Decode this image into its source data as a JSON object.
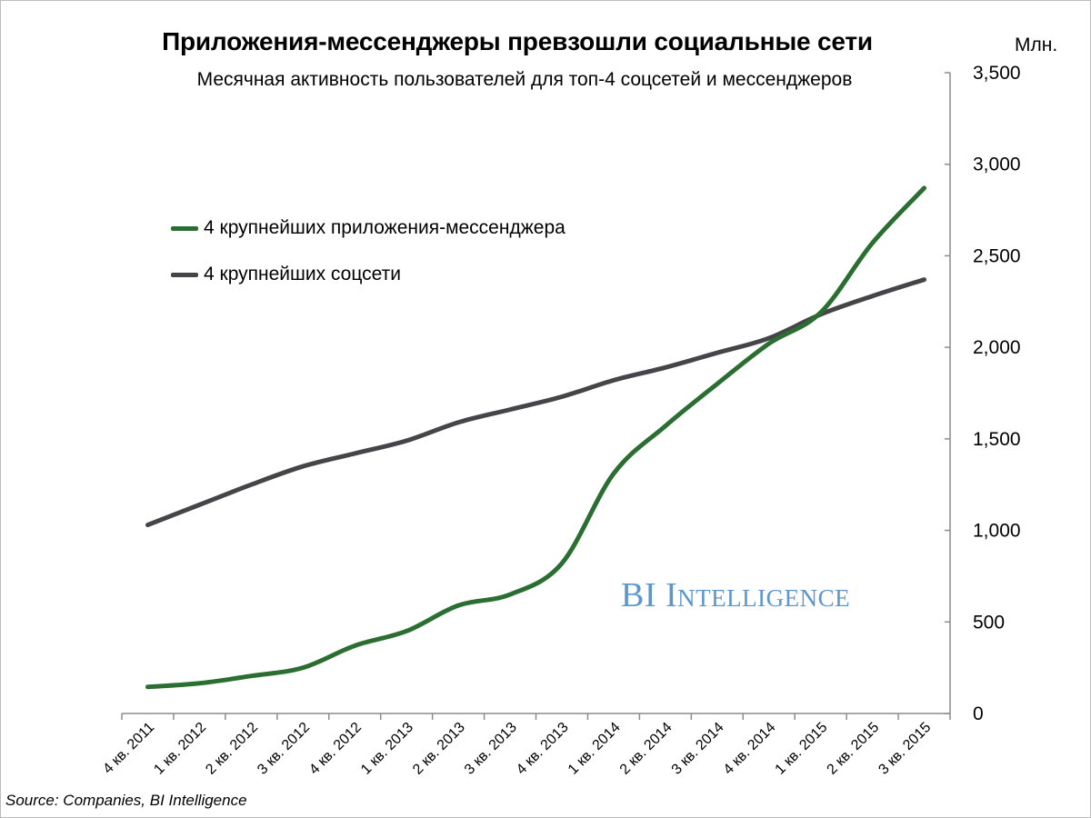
{
  "title": "Приложения-мессенджеры превзошли социальные сети",
  "subtitle": "Месячная активность пользователей для топ-4 соцсетей и мессенджеров",
  "unit_label": "Млн.",
  "source": "Source: Companies, BI Intelligence",
  "watermark": "BI Intelligence",
  "colors": {
    "messengers": "#2b6e32",
    "social": "#454549",
    "watermark": "#5b96cf",
    "axis": "#8c8c8c"
  },
  "chart_data": {
    "type": "line",
    "categories": [
      "4 кв. 2011",
      "1 кв. 2012",
      "2 кв. 2012",
      "3 кв. 2012",
      "4 кв. 2012",
      "1 кв. 2013",
      "2 кв. 2013",
      "3 кв. 2013",
      "4 кв. 2013",
      "1 кв. 2014",
      "2 кв. 2014",
      "3 кв. 2014",
      "4 кв. 2014",
      "1 кв. 2015",
      "2 кв. 2015",
      "3 кв. 2015"
    ],
    "series": [
      {
        "name": "4 крупнейших приложения-мессенджера",
        "color": "#2b6e32",
        "values": [
          145,
          165,
          205,
          250,
          370,
          450,
          590,
          650,
          820,
          1310,
          1570,
          1800,
          2020,
          2190,
          2570,
          2870
        ]
      },
      {
        "name": "4 крупнейших соцсети",
        "color": "#454549",
        "values": [
          1030,
          1140,
          1250,
          1350,
          1420,
          1490,
          1590,
          1660,
          1730,
          1820,
          1890,
          1970,
          2050,
          2180,
          2280,
          2370
        ]
      }
    ],
    "yticks": [
      "0",
      "500",
      "1,000",
      "1,500",
      "2,000",
      "2,500",
      "3,000",
      "3,500"
    ],
    "ytick_values": [
      0,
      500,
      1000,
      1500,
      2000,
      2500,
      3000,
      3500
    ],
    "ylim": [
      0,
      3500
    ],
    "y_axis_position": "right",
    "legend_position": "upper-left",
    "grid": false
  }
}
